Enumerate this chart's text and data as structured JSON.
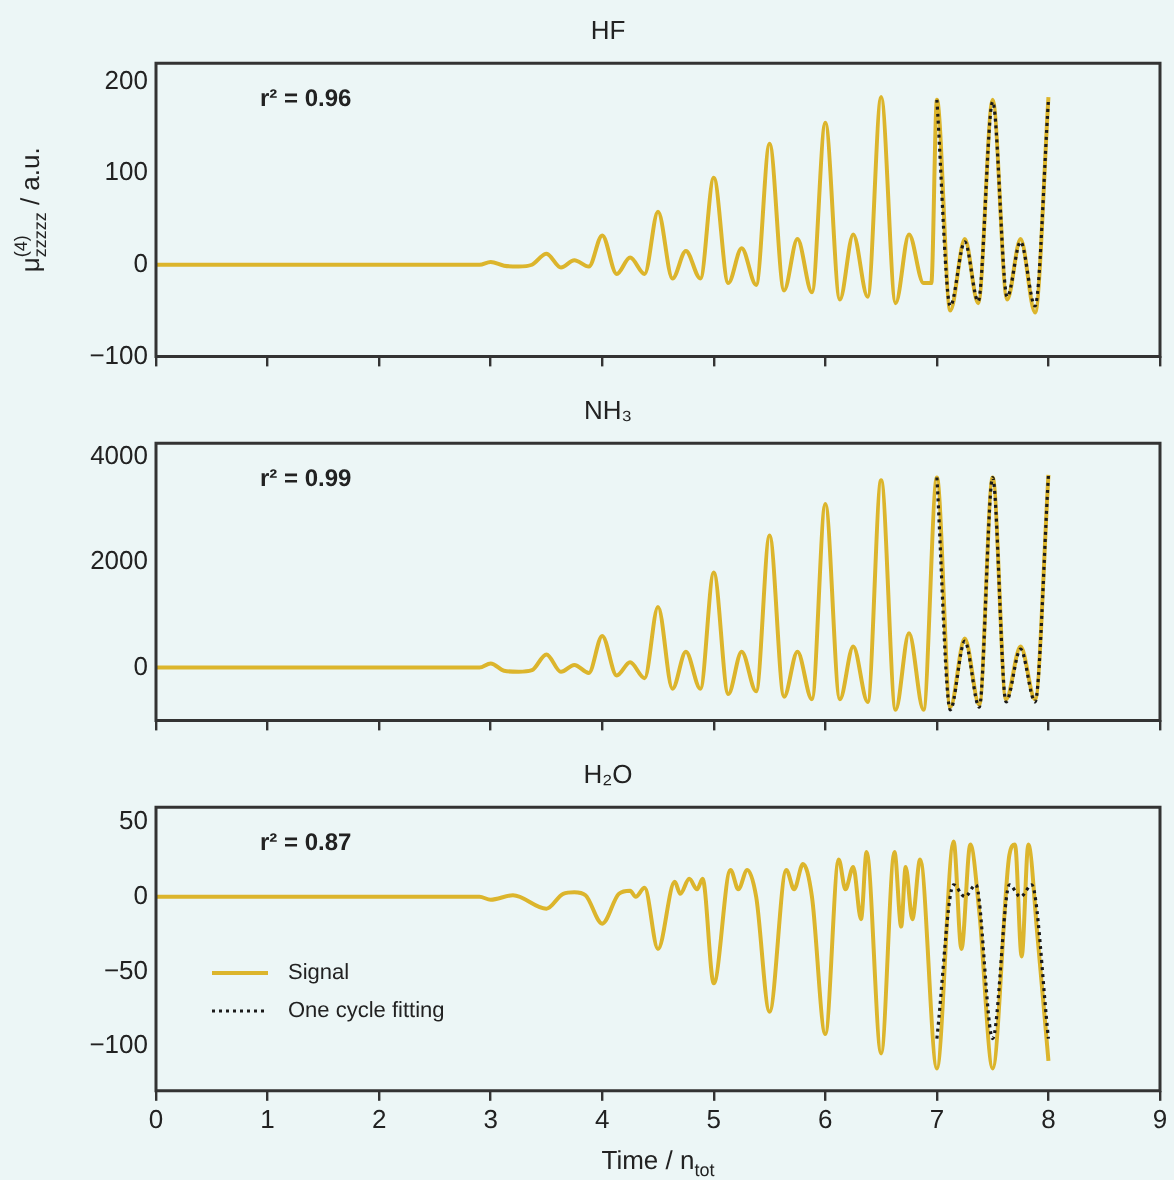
{
  "chart_data": [
    {
      "type": "line",
      "title": "HF",
      "ylabel": "μ$^{(4)}$$_{zzzzz}$ / a.u.",
      "annotations": [
        "r² = 0.96"
      ],
      "xlim": [
        0,
        9
      ],
      "xticks": [
        0,
        1,
        2,
        3,
        4,
        5,
        6,
        7,
        8,
        9
      ],
      "ylim": [
        -100,
        220
      ],
      "yticks": [
        -100,
        0,
        100,
        200
      ],
      "grid": false,
      "tick_labels": "y",
      "series": [
        {
          "type": "line",
          "color": "#dcb52c",
          "line_style": "solid",
          "x": [
            0,
            2.9,
            3.0,
            3.12,
            3.25,
            3.37,
            3.5,
            3.63,
            3.75,
            3.88,
            4.0,
            4.13,
            4.25,
            4.38,
            4.5,
            4.63,
            4.75,
            4.88,
            5.0,
            5.13,
            5.25,
            5.38,
            5.5,
            5.63,
            5.75,
            5.88,
            6.0,
            6.13,
            6.25,
            6.38,
            6.5,
            6.63,
            6.75,
            6.88,
            6.95,
            7.0,
            7.12,
            7.25,
            7.37,
            7.5,
            7.63,
            7.75,
            7.88,
            8.0
          ],
          "values": [
            0,
            0,
            3,
            -1,
            -2,
            0,
            12,
            -3,
            5,
            -2,
            32,
            -10,
            8,
            -10,
            58,
            -15,
            15,
            -15,
            95,
            -20,
            18,
            -22,
            132,
            -28,
            28,
            -30,
            155,
            -38,
            33,
            -35,
            183,
            -42,
            33,
            -20,
            -20,
            180,
            -50,
            28,
            -42,
            180,
            -38,
            28,
            -52,
            183
          ]
        },
        {
          "type": "line",
          "color": "#1a1a1a",
          "line_style": "dotted",
          "x": [
            7.0,
            7.12,
            7.25,
            7.37,
            7.5,
            7.63,
            7.75,
            7.88,
            8.0
          ],
          "values": [
            180,
            -45,
            25,
            -40,
            178,
            -35,
            25,
            -45,
            180
          ]
        }
      ]
    },
    {
      "type": "line",
      "title": "NH₃",
      "annotations": [
        "r² = 0.99"
      ],
      "xlim": [
        0,
        9
      ],
      "xticks": [
        0,
        1,
        2,
        3,
        4,
        5,
        6,
        7,
        8,
        9
      ],
      "ylim": [
        -1000,
        4250
      ],
      "yticks": [
        0,
        2000,
        4000
      ],
      "grid": false,
      "tick_labels": "y",
      "series": [
        {
          "type": "line",
          "color": "#dcb52c",
          "line_style": "solid",
          "x": [
            0,
            2.9,
            3.0,
            3.12,
            3.25,
            3.37,
            3.5,
            3.63,
            3.75,
            3.88,
            4.0,
            4.13,
            4.25,
            4.38,
            4.5,
            4.63,
            4.75,
            4.88,
            5.0,
            5.13,
            5.25,
            5.38,
            5.5,
            5.63,
            5.75,
            5.88,
            6.0,
            6.13,
            6.25,
            6.38,
            6.5,
            6.63,
            6.75,
            6.88,
            7.0,
            7.12,
            7.25,
            7.38,
            7.5,
            7.62,
            7.75,
            7.88,
            8.0
          ],
          "values": [
            0,
            0,
            80,
            -60,
            -80,
            -50,
            250,
            -80,
            50,
            -100,
            600,
            -150,
            100,
            -200,
            1150,
            -400,
            300,
            -400,
            1800,
            -500,
            300,
            -450,
            2500,
            -550,
            300,
            -600,
            3100,
            -600,
            400,
            -650,
            3550,
            -800,
            650,
            -800,
            3600,
            -750,
            550,
            -700,
            3600,
            -600,
            400,
            -600,
            3650
          ]
        },
        {
          "type": "line",
          "color": "#1a1a1a",
          "line_style": "dotted",
          "x": [
            7.0,
            7.12,
            7.25,
            7.38,
            7.5,
            7.62,
            7.75,
            7.88,
            8.0
          ],
          "values": [
            3600,
            -800,
            500,
            -750,
            3600,
            -650,
            350,
            -650,
            3650
          ]
        }
      ]
    },
    {
      "type": "line",
      "title": "H₂O",
      "xlabel": "Time / n$_{tot}$",
      "annotations": [
        "r² = 0.87"
      ],
      "xlim": [
        0,
        9
      ],
      "xticks": [
        0,
        1,
        2,
        3,
        4,
        5,
        6,
        7,
        8,
        9
      ],
      "ylim": [
        -130,
        60
      ],
      "yticks": [
        -100,
        -50,
        0,
        50
      ],
      "grid": false,
      "legend": "left",
      "series": [
        {
          "type": "line",
          "name": "Signal",
          "color": "#dcb52c",
          "line_style": "solid",
          "x": [
            0,
            2.9,
            3.0,
            3.2,
            3.5,
            3.65,
            3.75,
            3.85,
            4.0,
            4.15,
            4.25,
            4.3,
            4.38,
            4.5,
            4.65,
            4.7,
            4.78,
            4.85,
            4.9,
            5.0,
            5.15,
            5.22,
            5.3,
            5.38,
            5.5,
            5.65,
            5.72,
            5.8,
            5.88,
            6.0,
            6.12,
            6.18,
            6.25,
            6.32,
            6.37,
            6.5,
            6.62,
            6.68,
            6.72,
            6.78,
            6.85,
            7.0,
            7.15,
            7.22,
            7.3,
            7.38,
            7.5,
            7.65,
            7.7,
            7.76,
            7.82,
            7.9,
            8.0
          ],
          "values": [
            0,
            0,
            -2,
            1,
            -8,
            2,
            3,
            1,
            -18,
            2,
            4,
            0,
            6,
            -35,
            10,
            2,
            12,
            5,
            12,
            -58,
            18,
            5,
            18,
            0,
            -77,
            18,
            5,
            22,
            0,
            -92,
            25,
            5,
            20,
            -15,
            30,
            -105,
            30,
            -20,
            20,
            -15,
            25,
            -115,
            37,
            -35,
            35,
            -10,
            -115,
            28,
            35,
            -40,
            35,
            -25,
            -110
          ]
        },
        {
          "type": "line",
          "name": "One cycle fitting",
          "color": "#1a1a1a",
          "line_style": "dotted",
          "x": [
            7.0,
            7.15,
            7.25,
            7.35,
            7.5,
            7.65,
            7.75,
            7.85,
            8.0
          ],
          "values": [
            -95,
            8,
            0,
            8,
            -95,
            8,
            0,
            8,
            -95
          ]
        }
      ]
    }
  ]
}
